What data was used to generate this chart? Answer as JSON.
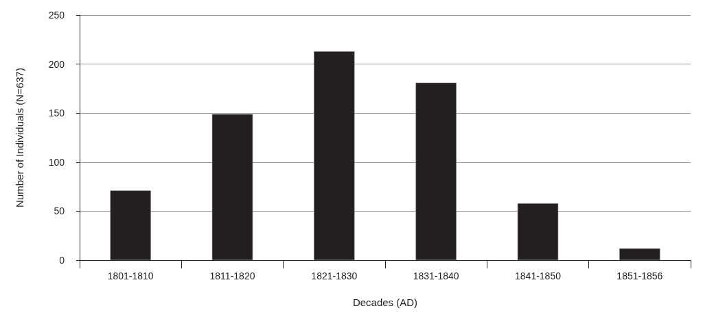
{
  "chart_data": {
    "type": "bar",
    "xlabel": "Decades (AD)",
    "ylabel": "Number of Individuals (N=637)",
    "categories": [
      "1801-1810",
      "1811-1820",
      "1821-1830",
      "1831-1840",
      "1841-1850",
      "1851-1856"
    ],
    "values": [
      71,
      149,
      213,
      181,
      58,
      12
    ],
    "color": "#231f20",
    "ylim": [
      0,
      250
    ],
    "yticks": [
      0,
      50,
      100,
      150,
      200,
      250
    ],
    "grid": "y"
  }
}
